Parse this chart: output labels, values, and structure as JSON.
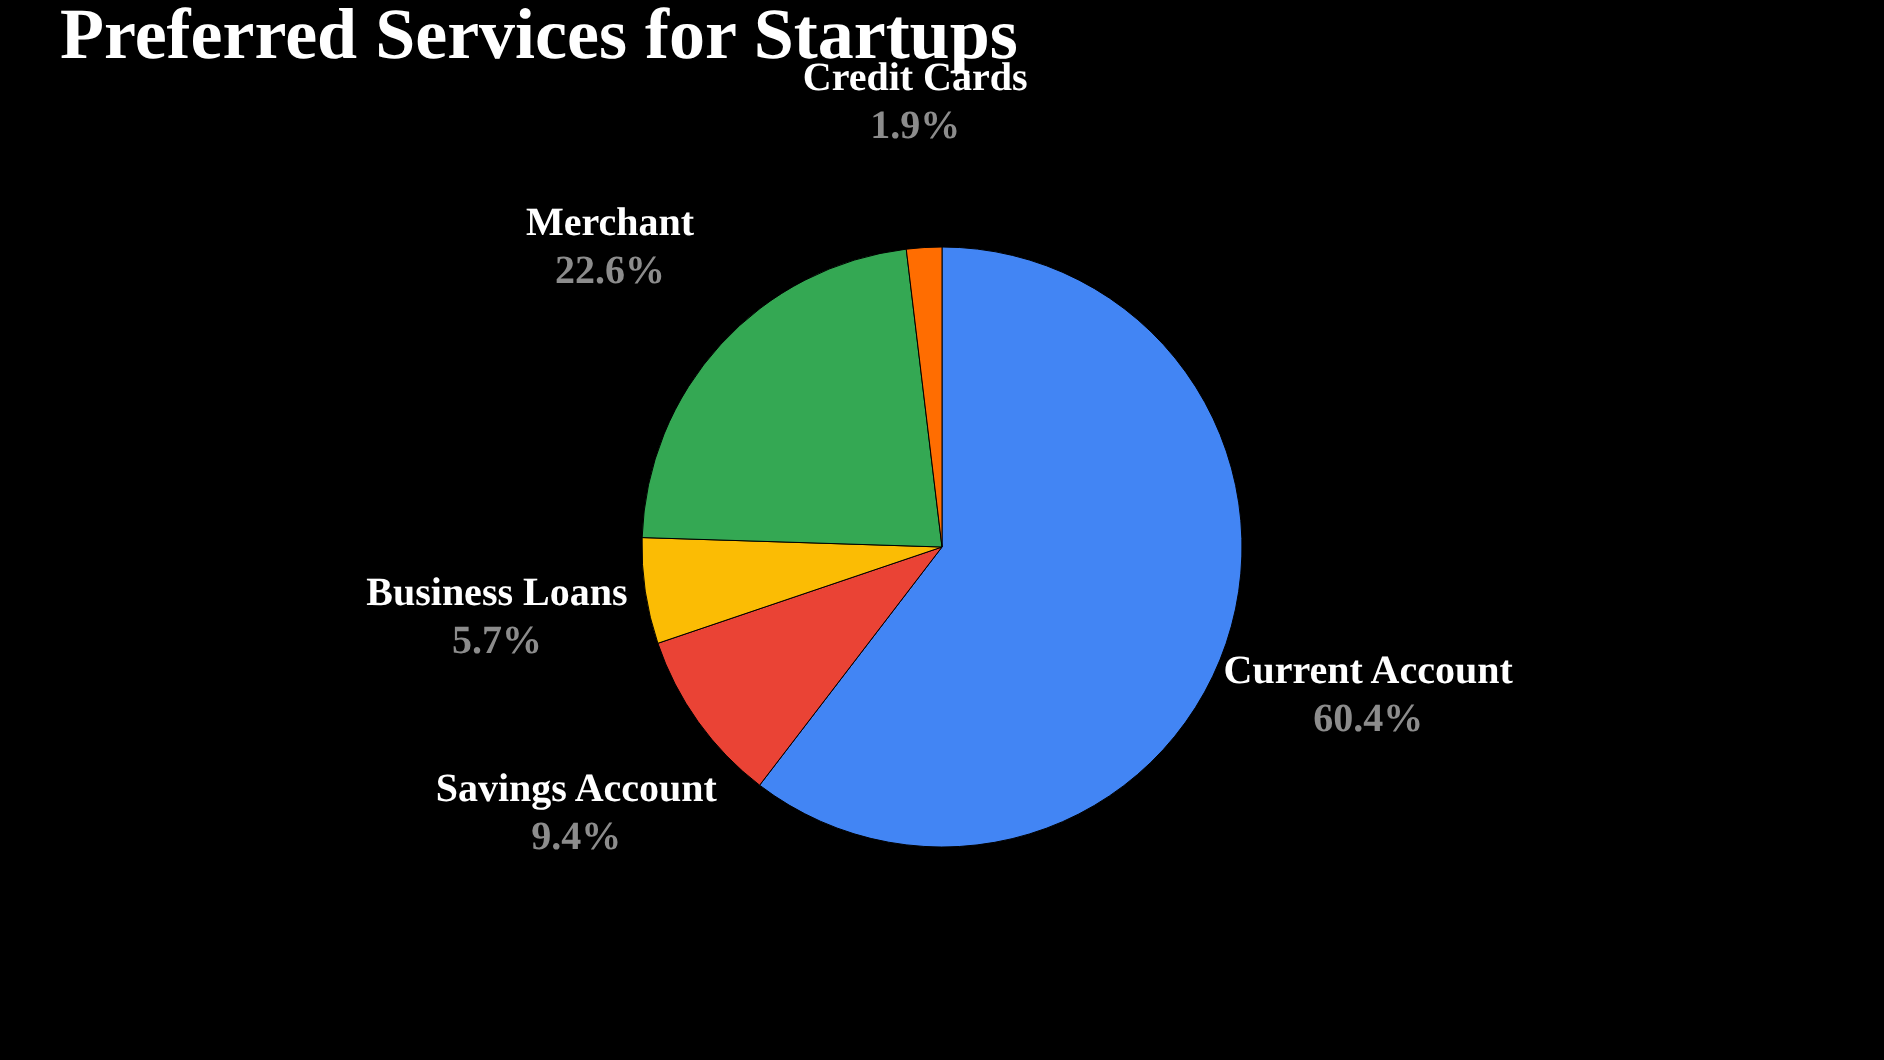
{
  "chart_data": {
    "type": "pie",
    "title": "Preferred Services for Startups",
    "categories": [
      "Current Account",
      "Savings Account",
      "Business Loans",
      "Merchant",
      "Credit Cards"
    ],
    "values": [
      60.4,
      9.4,
      5.7,
      22.6,
      1.9
    ],
    "colors": [
      "#4285f4",
      "#ea4335",
      "#fbbc04",
      "#34a853",
      "#ff6d01"
    ],
    "value_labels": [
      "60.4%",
      "9.4%",
      "5.7%",
      "22.6%",
      "1.9%"
    ]
  }
}
